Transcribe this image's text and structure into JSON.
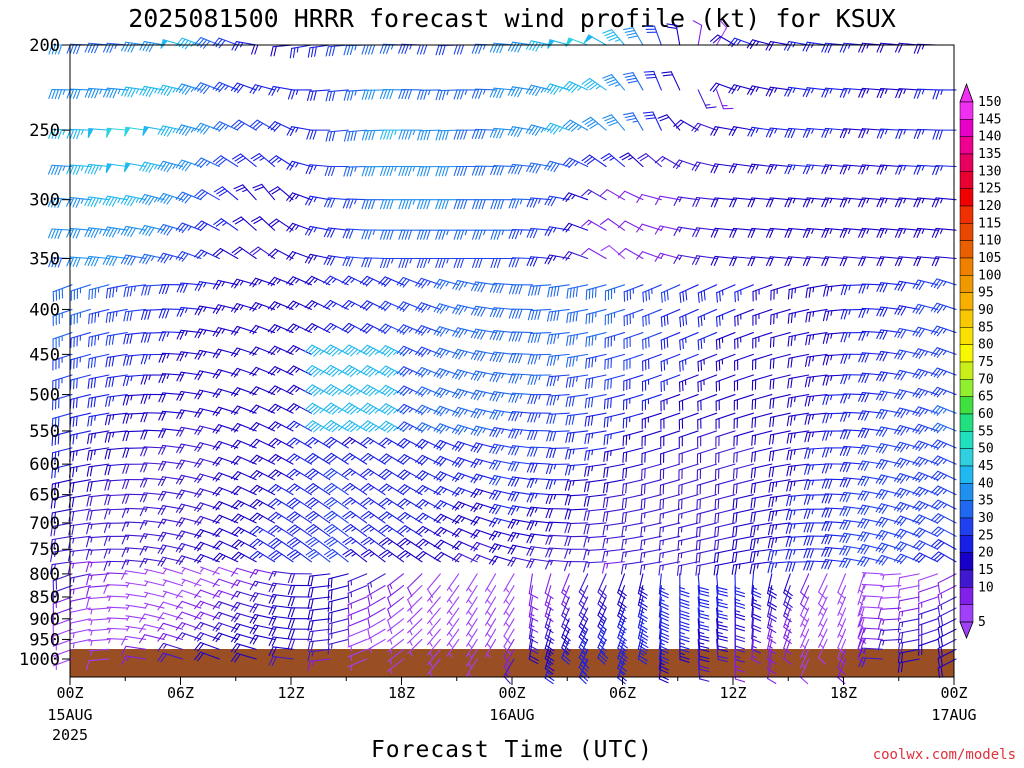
{
  "chart_data": {
    "type": "wind-barb-time-height",
    "title": "2025081500 HRRR forecast wind profile (kt) for KSUX",
    "xlabel": "Forecast Time (UTC)",
    "ylabel": "",
    "x_ticks": [
      {
        "label": "00Z",
        "sub": "15AUG",
        "sub2": "2025",
        "hour": 0
      },
      {
        "label": "06Z",
        "sub": "",
        "sub2": "",
        "hour": 6
      },
      {
        "label": "12Z",
        "sub": "",
        "sub2": "",
        "hour": 12
      },
      {
        "label": "18Z",
        "sub": "",
        "sub2": "",
        "hour": 18
      },
      {
        "label": "00Z",
        "sub": "16AUG",
        "sub2": "",
        "hour": 24
      },
      {
        "label": "06Z",
        "sub": "",
        "sub2": "",
        "hour": 30
      },
      {
        "label": "12Z",
        "sub": "",
        "sub2": "",
        "hour": 36
      },
      {
        "label": "18Z",
        "sub": "",
        "sub2": "",
        "hour": 42
      },
      {
        "label": "00Z",
        "sub": "17AUG",
        "sub2": "",
        "hour": 48
      }
    ],
    "xlim": [
      0,
      48
    ],
    "y_ticks": [
      "200",
      "250",
      "300",
      "350",
      "400",
      "450",
      "500",
      "550",
      "600",
      "650",
      "700",
      "750",
      "800",
      "850",
      "900",
      "950",
      "1000"
    ],
    "ylim": [
      200,
      1000
    ],
    "y_scale": "log-pressure",
    "surface_color": "#9a4e24",
    "colorbar": {
      "labels": [
        "150",
        "145",
        "140",
        "135",
        "130",
        "125",
        "120",
        "115",
        "110",
        "105",
        "100",
        "95",
        "90",
        "85",
        "80",
        "75",
        "70",
        "65",
        "60",
        "55",
        "50",
        "45",
        "40",
        "35",
        "30",
        "25",
        "20",
        "15",
        "10",
        "5"
      ],
      "colors": [
        "#f030f0",
        "#e800c8",
        "#f00090",
        "#e80060",
        "#e80030",
        "#f00000",
        "#f03000",
        "#e84800",
        "#e86000",
        "#f08000",
        "#f09800",
        "#f8b000",
        "#f8c800",
        "#f8e000",
        "#f8f800",
        "#c8f018",
        "#90f030",
        "#40e040",
        "#20e080",
        "#20e0c0",
        "#30d0e0",
        "#20b8f0",
        "#2090f0",
        "#2068f0",
        "#2040f0",
        "#1820e8",
        "#1800c8",
        "#4018d0",
        "#8020e8",
        "#a040f8"
      ]
    },
    "series": [
      {
        "pressure": 200,
        "speed_kt": [
          40,
          38,
          38,
          35,
          40,
          42,
          48,
          45,
          38,
          30,
          25,
          22,
          22,
          25,
          28,
          32,
          36,
          38,
          36,
          34,
          32,
          30,
          32,
          36,
          40,
          42,
          45,
          48,
          50,
          48,
          45,
          40,
          30,
          22,
          10,
          8,
          22,
          25,
          24,
          22,
          25,
          26,
          28,
          26,
          24,
          22,
          22,
          24,
          24
        ],
        "dir_deg": [
          270,
          272,
          275,
          275,
          278,
          280,
          285,
          290,
          292,
          290,
          280,
          270,
          265,
          260,
          262,
          265,
          268,
          270,
          272,
          272,
          270,
          268,
          270,
          272,
          275,
          278,
          282,
          285,
          290,
          300,
          320,
          330,
          340,
          350,
          10,
          30,
          300,
          290,
          285,
          280,
          280,
          278,
          275,
          275,
          275,
          275,
          275,
          272,
          270
        ]
      },
      {
        "pressure": 250,
        "speed_kt": [
          45,
          46,
          48,
          50,
          50,
          48,
          46,
          44,
          40,
          36,
          32,
          30,
          28,
          26,
          28,
          32,
          38,
          42,
          45,
          44,
          42,
          40,
          38,
          38,
          40,
          42,
          44,
          45,
          44,
          42,
          40,
          35,
          28,
          22,
          20,
          18,
          20,
          22,
          25,
          26,
          28,
          26,
          25,
          24,
          24,
          25,
          26,
          27,
          28
        ],
        "dir_deg": [
          272,
          272,
          274,
          275,
          278,
          280,
          282,
          285,
          290,
          295,
          300,
          300,
          295,
          280,
          270,
          265,
          265,
          268,
          270,
          270,
          268,
          268,
          270,
          272,
          275,
          280,
          285,
          290,
          300,
          310,
          320,
          330,
          335,
          320,
          300,
          290,
          280,
          280,
          278,
          276,
          275,
          275,
          275,
          274,
          274,
          273,
          272,
          272,
          270
        ]
      },
      {
        "pressure": 300,
        "speed_kt": [
          42,
          44,
          45,
          46,
          45,
          44,
          42,
          38,
          32,
          28,
          24,
          22,
          22,
          24,
          26,
          30,
          34,
          38,
          42,
          44,
          42,
          40,
          38,
          38,
          38,
          36,
          34,
          30,
          24,
          16,
          12,
          10,
          10,
          12,
          16,
          18,
          20,
          22,
          22,
          22,
          24,
          24,
          24,
          24,
          24,
          24,
          24,
          24,
          24
        ],
        "dir_deg": [
          275,
          276,
          278,
          280,
          282,
          285,
          288,
          292,
          300,
          310,
          318,
          320,
          310,
          290,
          280,
          275,
          272,
          270,
          270,
          270,
          270,
          270,
          270,
          270,
          270,
          272,
          275,
          280,
          290,
          300,
          300,
          295,
          285,
          280,
          278,
          276,
          275,
          275,
          275,
          275,
          275,
          275,
          275,
          275,
          275,
          275,
          275,
          275,
          275
        ]
      },
      {
        "pressure": 350,
        "speed_kt": [
          38,
          40,
          40,
          40,
          38,
          36,
          34,
          30,
          26,
          22,
          20,
          18,
          20,
          22,
          24,
          28,
          30,
          32,
          34,
          34,
          34,
          34,
          32,
          32,
          32,
          30,
          28,
          24,
          18,
          12,
          8,
          10,
          12,
          14,
          16,
          18,
          20,
          20,
          20,
          20,
          20,
          22,
          22,
          22,
          22,
          22,
          22,
          22,
          22
        ],
        "dir_deg": [
          272,
          274,
          276,
          278,
          280,
          282,
          285,
          290,
          295,
          300,
          305,
          305,
          298,
          290,
          282,
          278,
          275,
          272,
          270,
          270,
          270,
          270,
          270,
          270,
          270,
          272,
          275,
          280,
          290,
          300,
          310,
          300,
          290,
          285,
          280,
          278,
          276,
          275,
          275,
          275,
          275,
          275,
          275,
          275,
          275,
          275,
          275,
          275,
          275
        ]
      }
    ]
  }
}
